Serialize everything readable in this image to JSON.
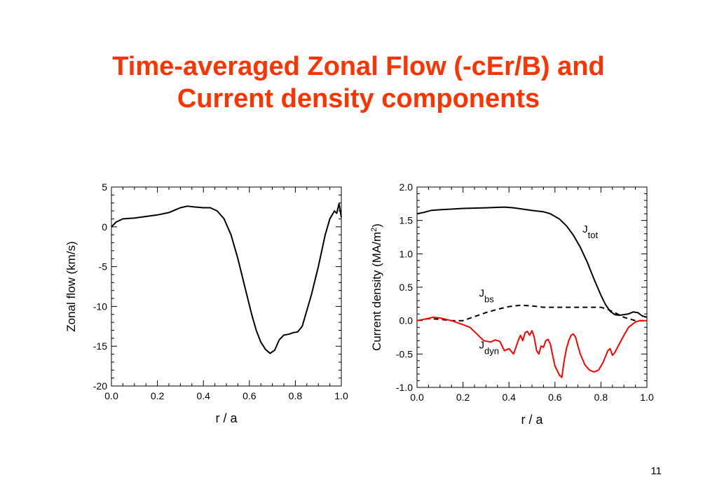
{
  "slide": {
    "title_line1": "Time-averaged Zonal Flow (-cEr/B) and",
    "title_line2": "Current density components",
    "page_number": "11"
  },
  "chart_data": [
    {
      "type": "line",
      "xlabel": "r / a",
      "ylabel": "Zonal flow (km/s)",
      "xlim": [
        0.0,
        1.0
      ],
      "ylim": [
        -20,
        5
      ],
      "x_ticks": [
        "0.0",
        "0.2",
        "0.4",
        "0.6",
        "0.8",
        "1.0"
      ],
      "y_ticks": [
        "5",
        "0",
        "-5",
        "-10",
        "-15",
        "-20"
      ],
      "grid": false,
      "series": [
        {
          "color": "#000000",
          "style": "solid",
          "points": [
            [
              0.0,
              0.0
            ],
            [
              0.02,
              0.6
            ],
            [
              0.05,
              1.0
            ],
            [
              0.1,
              1.1
            ],
            [
              0.15,
              1.3
            ],
            [
              0.2,
              1.5
            ],
            [
              0.25,
              1.8
            ],
            [
              0.3,
              2.4
            ],
            [
              0.33,
              2.6
            ],
            [
              0.36,
              2.5
            ],
            [
              0.4,
              2.4
            ],
            [
              0.43,
              2.4
            ],
            [
              0.46,
              2.0
            ],
            [
              0.49,
              1.0
            ],
            [
              0.52,
              -1.0
            ],
            [
              0.55,
              -4.0
            ],
            [
              0.58,
              -7.5
            ],
            [
              0.61,
              -11.0
            ],
            [
              0.63,
              -13.0
            ],
            [
              0.65,
              -14.5
            ],
            [
              0.67,
              -15.4
            ],
            [
              0.69,
              -15.9
            ],
            [
              0.71,
              -15.5
            ],
            [
              0.73,
              -14.2
            ],
            [
              0.75,
              -13.6
            ],
            [
              0.77,
              -13.5
            ],
            [
              0.79,
              -13.3
            ],
            [
              0.81,
              -13.2
            ],
            [
              0.83,
              -12.5
            ],
            [
              0.85,
              -10.5
            ],
            [
              0.87,
              -8.5
            ],
            [
              0.9,
              -5.0
            ],
            [
              0.93,
              -1.0
            ],
            [
              0.95,
              1.0
            ],
            [
              0.97,
              2.0
            ],
            [
              0.98,
              1.7
            ],
            [
              0.99,
              2.9
            ],
            [
              0.995,
              2.0
            ],
            [
              1.0,
              1.2
            ]
          ]
        }
      ]
    },
    {
      "type": "line",
      "xlabel": "r / a",
      "ylabel": "Current density (MA/m",
      "ylabel_sup": "2",
      "ylabel_end": ")",
      "xlim": [
        0.0,
        1.0
      ],
      "ylim": [
        -1.0,
        2.0
      ],
      "x_ticks": [
        "0.0",
        "0.2",
        "0.4",
        "0.6",
        "0.8",
        "1.0"
      ],
      "y_ticks": [
        "2.0",
        "1.5",
        "1.0",
        "0.5",
        "0.0",
        "-0.5",
        "-1.0"
      ],
      "grid": false,
      "annotations": [
        {
          "base": "J",
          "sub": "tot",
          "x": 0.72,
          "y": 1.32
        },
        {
          "base": "J",
          "sub": "bs",
          "x": 0.27,
          "y": 0.36
        },
        {
          "base": "J",
          "sub": "dyn",
          "x": 0.27,
          "y": -0.42
        }
      ],
      "series": [
        {
          "color": "#000000",
          "style": "solid",
          "points": [
            [
              0.0,
              1.6
            ],
            [
              0.03,
              1.62
            ],
            [
              0.06,
              1.65
            ],
            [
              0.1,
              1.66
            ],
            [
              0.2,
              1.68
            ],
            [
              0.3,
              1.69
            ],
            [
              0.38,
              1.7
            ],
            [
              0.42,
              1.69
            ],
            [
              0.46,
              1.67
            ],
            [
              0.5,
              1.65
            ],
            [
              0.55,
              1.63
            ],
            [
              0.58,
              1.6
            ],
            [
              0.62,
              1.52
            ],
            [
              0.65,
              1.42
            ],
            [
              0.68,
              1.28
            ],
            [
              0.71,
              1.1
            ],
            [
              0.74,
              0.88
            ],
            [
              0.77,
              0.62
            ],
            [
              0.8,
              0.38
            ],
            [
              0.82,
              0.24
            ],
            [
              0.84,
              0.14
            ],
            [
              0.86,
              0.09
            ],
            [
              0.88,
              0.08
            ],
            [
              0.9,
              0.09
            ],
            [
              0.92,
              0.1
            ],
            [
              0.94,
              0.13
            ],
            [
              0.96,
              0.12
            ],
            [
              0.98,
              0.07
            ],
            [
              1.0,
              0.05
            ]
          ]
        },
        {
          "color": "#000000",
          "style": "dashed",
          "points": [
            [
              0.0,
              0.0
            ],
            [
              0.05,
              0.03
            ],
            [
              0.1,
              0.02
            ],
            [
              0.15,
              0.0
            ],
            [
              0.2,
              0.0
            ],
            [
              0.25,
              0.06
            ],
            [
              0.3,
              0.12
            ],
            [
              0.35,
              0.17
            ],
            [
              0.4,
              0.21
            ],
            [
              0.45,
              0.23
            ],
            [
              0.5,
              0.22
            ],
            [
              0.55,
              0.2
            ],
            [
              0.6,
              0.2
            ],
            [
              0.65,
              0.2
            ],
            [
              0.7,
              0.2
            ],
            [
              0.75,
              0.2
            ],
            [
              0.8,
              0.2
            ],
            [
              0.83,
              0.17
            ],
            [
              0.86,
              0.12
            ],
            [
              0.9,
              0.05
            ],
            [
              0.95,
              0.0
            ],
            [
              1.0,
              0.0
            ]
          ]
        },
        {
          "color": "#ff0000",
          "style": "solid",
          "points": [
            [
              0.0,
              0.0
            ],
            [
              0.03,
              0.02
            ],
            [
              0.07,
              0.05
            ],
            [
              0.1,
              0.04
            ],
            [
              0.15,
              0.0
            ],
            [
              0.2,
              -0.06
            ],
            [
              0.23,
              -0.1
            ],
            [
              0.26,
              -0.2
            ],
            [
              0.29,
              -0.3
            ],
            [
              0.32,
              -0.32
            ],
            [
              0.34,
              -0.29
            ],
            [
              0.36,
              -0.31
            ],
            [
              0.38,
              -0.45
            ],
            [
              0.4,
              -0.42
            ],
            [
              0.42,
              -0.5
            ],
            [
              0.44,
              -0.3
            ],
            [
              0.45,
              -0.22
            ],
            [
              0.46,
              -0.3
            ],
            [
              0.47,
              -0.18
            ],
            [
              0.48,
              -0.16
            ],
            [
              0.49,
              -0.22
            ],
            [
              0.5,
              -0.15
            ],
            [
              0.51,
              -0.25
            ],
            [
              0.52,
              -0.45
            ],
            [
              0.53,
              -0.5
            ],
            [
              0.54,
              -0.38
            ],
            [
              0.55,
              -0.4
            ],
            [
              0.56,
              -0.3
            ],
            [
              0.57,
              -0.28
            ],
            [
              0.58,
              -0.35
            ],
            [
              0.59,
              -0.52
            ],
            [
              0.6,
              -0.68
            ],
            [
              0.62,
              -0.82
            ],
            [
              0.63,
              -0.85
            ],
            [
              0.64,
              -0.6
            ],
            [
              0.65,
              -0.42
            ],
            [
              0.66,
              -0.3
            ],
            [
              0.67,
              -0.22
            ],
            [
              0.68,
              -0.2
            ],
            [
              0.69,
              -0.25
            ],
            [
              0.7,
              -0.38
            ],
            [
              0.71,
              -0.5
            ],
            [
              0.72,
              -0.58
            ],
            [
              0.73,
              -0.66
            ],
            [
              0.75,
              -0.74
            ],
            [
              0.77,
              -0.77
            ],
            [
              0.79,
              -0.74
            ],
            [
              0.81,
              -0.62
            ],
            [
              0.83,
              -0.45
            ],
            [
              0.84,
              -0.42
            ],
            [
              0.85,
              -0.52
            ],
            [
              0.86,
              -0.48
            ],
            [
              0.88,
              -0.35
            ],
            [
              0.9,
              -0.22
            ],
            [
              0.92,
              -0.1
            ],
            [
              0.95,
              -0.02
            ],
            [
              0.97,
              0.0
            ],
            [
              1.0,
              0.0
            ]
          ]
        }
      ]
    }
  ]
}
